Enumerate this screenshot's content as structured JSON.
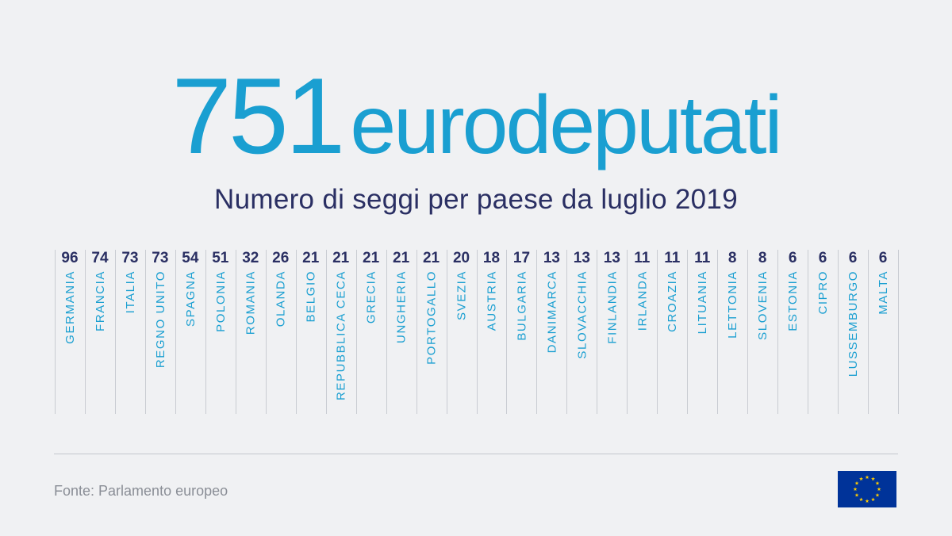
{
  "headline": {
    "number": "751",
    "word": "eurodeputati"
  },
  "subtitle": "Numero di seggi per paese da luglio 2019",
  "source": "Fonte: Parlamento europeo",
  "colors": {
    "background": "#f0f1f3",
    "accent": "#1a9fd1",
    "navy": "#2a2f63",
    "divider": "#c9ccd2",
    "flag_blue": "#003399",
    "flag_star": "#ffcc00"
  },
  "icons": {
    "flag": "eu-flag-icon"
  },
  "chart_data": {
    "type": "table",
    "title": "751 eurodeputati",
    "subtitle": "Numero di seggi per paese da luglio 2019",
    "categories": [
      "GERMANIA",
      "FRANCIA",
      "ITALIA",
      "REGNO UNITO",
      "SPAGNA",
      "POLONIA",
      "ROMANIA",
      "OLANDA",
      "BELGIO",
      "REPUBBLICA CECA",
      "GRECIA",
      "UNGHERIA",
      "PORTOGALLO",
      "SVEZIA",
      "AUSTRIA",
      "BULGARIA",
      "DANIMARCA",
      "SLOVACCHIA",
      "FINLANDIA",
      "IRLANDA",
      "CROAZIA",
      "LITUANIA",
      "LETTONIA",
      "SLOVENIA",
      "ESTONIA",
      "CIPRO",
      "LUSSEMBURGO",
      "MALTA"
    ],
    "values": [
      96,
      74,
      73,
      73,
      54,
      51,
      32,
      26,
      21,
      21,
      21,
      21,
      21,
      20,
      18,
      17,
      13,
      13,
      13,
      11,
      11,
      11,
      8,
      8,
      6,
      6,
      6,
      6
    ],
    "total": 751
  }
}
